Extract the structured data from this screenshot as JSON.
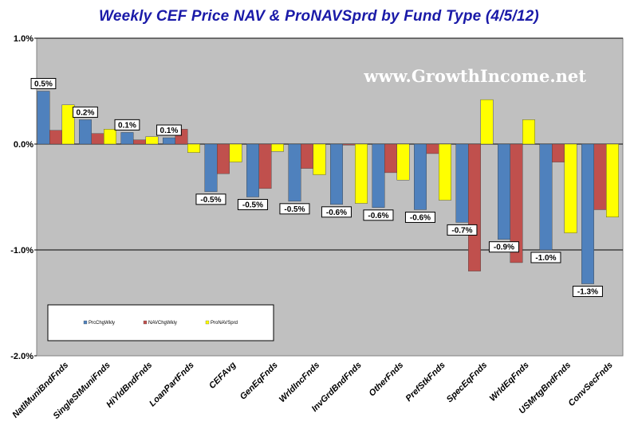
{
  "title": "Weekly CEF Price NAV & ProNAVSprd by Fund Type  (4/5/12)",
  "watermark": "www.GrowthIncome.net",
  "colors": {
    "background": "#ffffff",
    "plot_area": "#c0c0c0",
    "title": "#1a1aa8",
    "watermark": "#ffffff"
  },
  "chart_data": {
    "type": "bar",
    "title": "Weekly CEF Price NAV & ProNAVSprd by Fund Type  (4/5/12)",
    "ylim": [
      -2.0,
      1.0
    ],
    "yticks": [
      1.0,
      0.0,
      -1.0,
      -2.0
    ],
    "ytick_labels": [
      "1.0%",
      "0.0%",
      "-1.0%",
      "-2.0%"
    ],
    "grid": "horizontal at 1.0%, 0.0%, -1.0%",
    "legend": "bottom-left inside plot",
    "categories": [
      "NatlMuniBndFnds",
      "SingleStMuniFnds",
      "HiYldBndFnds",
      "LoanPartFnds",
      "CEFAvg",
      "GenEqFnds",
      "WrldIncFnds",
      "InvGrdBndFnds",
      "OtherFnds",
      "PrefStkFnds",
      "SpecEqFnds",
      "WrldEqFnds",
      "USMrtgBndFnds",
      "ConvSecFnds"
    ],
    "series": [
      {
        "name": "PrcChgWkly",
        "color": "#4f81bd",
        "values": [
          0.5,
          0.23,
          0.11,
          0.06,
          -0.45,
          -0.5,
          -0.54,
          -0.57,
          -0.6,
          -0.62,
          -0.74,
          -0.9,
          -1.0,
          -1.32
        ]
      },
      {
        "name": "NAVChgWkly",
        "color": "#c0504d",
        "values": [
          0.13,
          0.1,
          0.04,
          0.14,
          -0.28,
          -0.42,
          -0.23,
          -0.01,
          -0.27,
          -0.09,
          -1.2,
          -1.12,
          -0.17,
          -0.62
        ]
      },
      {
        "name": "ProNAVSprd",
        "color": "#ffff00",
        "values": [
          0.37,
          0.14,
          0.07,
          -0.08,
          -0.17,
          -0.07,
          -0.29,
          -0.56,
          -0.34,
          -0.53,
          0.42,
          0.23,
          -0.84,
          -0.69
        ]
      }
    ],
    "data_labels": [
      "0.5%",
      "0.2%",
      "0.1%",
      "0.1%",
      "-0.5%",
      "-0.5%",
      "-0.5%",
      "-0.6%",
      "-0.6%",
      "-0.6%",
      "-0.7%",
      "-0.9%",
      "-1.0%",
      "-1.3%"
    ]
  }
}
